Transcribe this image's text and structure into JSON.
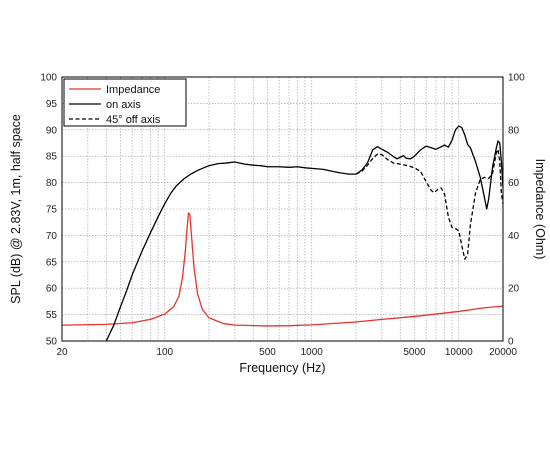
{
  "chart_data": {
    "type": "line",
    "title": "",
    "xlabel": "Frequency (Hz)",
    "ylabel_left": "SPL (dB) @ 2.83V, 1m, half space",
    "ylabel_right": "Impedance (Ohm)",
    "x_scale": "log",
    "xlim": [
      20,
      20000
    ],
    "ylim_left": [
      50,
      100
    ],
    "ylim_right": [
      0,
      100
    ],
    "grid": true,
    "legend_position": "top-left",
    "x_tick_labels": [
      {
        "value": 20,
        "label": "20"
      },
      {
        "value": 100,
        "label": "100"
      },
      {
        "value": 500,
        "label": "500"
      },
      {
        "value": 1000,
        "label": "1000"
      },
      {
        "value": 5000,
        "label": "5000"
      },
      {
        "value": 10000,
        "label": "10000"
      },
      {
        "value": 20000,
        "label": "20000"
      }
    ],
    "y_left_ticks": [
      50,
      55,
      60,
      65,
      70,
      75,
      80,
      85,
      90,
      95,
      100
    ],
    "y_right_ticks": [
      0,
      20,
      40,
      60,
      80,
      100
    ],
    "series": [
      {
        "name": "Impedance",
        "axis": "right",
        "color": "#e8322b",
        "dash": "solid",
        "points": [
          [
            20,
            6
          ],
          [
            40,
            6.3
          ],
          [
            60,
            6.9
          ],
          [
            80,
            8.2
          ],
          [
            100,
            10.2
          ],
          [
            115,
            13
          ],
          [
            125,
            17
          ],
          [
            132,
            24
          ],
          [
            138,
            34
          ],
          [
            142,
            43
          ],
          [
            145,
            48.5
          ],
          [
            148,
            48
          ],
          [
            152,
            40
          ],
          [
            158,
            28
          ],
          [
            167,
            18
          ],
          [
            180,
            12
          ],
          [
            200,
            8.8
          ],
          [
            250,
            6.6
          ],
          [
            300,
            6
          ],
          [
            500,
            5.7
          ],
          [
            700,
            5.8
          ],
          [
            1000,
            6.1
          ],
          [
            2000,
            7.2
          ],
          [
            3000,
            8.2
          ],
          [
            5000,
            9.3
          ],
          [
            7000,
            10.2
          ],
          [
            10000,
            11.2
          ],
          [
            15000,
            12.6
          ],
          [
            20000,
            13.2
          ]
        ]
      },
      {
        "name": "on axis",
        "axis": "left",
        "color": "#000000",
        "dash": "solid",
        "points": [
          [
            40,
            50
          ],
          [
            45,
            53
          ],
          [
            50,
            56.5
          ],
          [
            55,
            59.5
          ],
          [
            60,
            62.5
          ],
          [
            70,
            67
          ],
          [
            80,
            70.5
          ],
          [
            90,
            73.5
          ],
          [
            100,
            76
          ],
          [
            110,
            78
          ],
          [
            120,
            79.4
          ],
          [
            135,
            80.7
          ],
          [
            150,
            81.6
          ],
          [
            170,
            82.4
          ],
          [
            200,
            83.2
          ],
          [
            230,
            83.6
          ],
          [
            260,
            83.7
          ],
          [
            300,
            83.9
          ],
          [
            350,
            83.5
          ],
          [
            400,
            83.3
          ],
          [
            450,
            83.2
          ],
          [
            500,
            83
          ],
          [
            600,
            83
          ],
          [
            700,
            82.9
          ],
          [
            800,
            83
          ],
          [
            900,
            82.8
          ],
          [
            1000,
            82.7
          ],
          [
            1200,
            82.5
          ],
          [
            1400,
            82.1
          ],
          [
            1600,
            81.8
          ],
          [
            1800,
            81.6
          ],
          [
            2000,
            81.6
          ],
          [
            2200,
            82.4
          ],
          [
            2400,
            83.8
          ],
          [
            2600,
            86.2
          ],
          [
            2800,
            86.8
          ],
          [
            3000,
            86.3
          ],
          [
            3300,
            85.7
          ],
          [
            3600,
            84.9
          ],
          [
            3800,
            84.5
          ],
          [
            4000,
            84.8
          ],
          [
            4200,
            85.1
          ],
          [
            4400,
            84.6
          ],
          [
            4700,
            84.5
          ],
          [
            5000,
            85
          ],
          [
            5500,
            86.2
          ],
          [
            6000,
            86.9
          ],
          [
            6500,
            86.6
          ],
          [
            7000,
            86.3
          ],
          [
            7500,
            86.7
          ],
          [
            8000,
            87.1
          ],
          [
            8500,
            86.7
          ],
          [
            9000,
            88
          ],
          [
            9500,
            90
          ],
          [
            10000,
            90.7
          ],
          [
            10500,
            90.4
          ],
          [
            11000,
            89
          ],
          [
            11500,
            87.2
          ],
          [
            12000,
            86.6
          ],
          [
            13000,
            84
          ],
          [
            14000,
            81
          ],
          [
            15000,
            77
          ],
          [
            15500,
            75
          ],
          [
            16000,
            77
          ],
          [
            17000,
            83
          ],
          [
            18000,
            86.5
          ],
          [
            18500,
            87.9
          ],
          [
            19000,
            87.5
          ],
          [
            19500,
            84
          ],
          [
            20000,
            79
          ]
        ]
      },
      {
        "name": "45° off axis",
        "axis": "left",
        "color": "#000000",
        "dash": "dashed",
        "points": [
          [
            2000,
            81.6
          ],
          [
            2200,
            82.2
          ],
          [
            2400,
            83.3
          ],
          [
            2600,
            84.6
          ],
          [
            2800,
            85.4
          ],
          [
            3000,
            85.3
          ],
          [
            3300,
            84.3
          ],
          [
            3600,
            83.7
          ],
          [
            4000,
            83.5
          ],
          [
            4500,
            83.2
          ],
          [
            5000,
            82.8
          ],
          [
            5500,
            82.1
          ],
          [
            6000,
            80.2
          ],
          [
            6500,
            78.5
          ],
          [
            6800,
            78.1
          ],
          [
            7200,
            78.7
          ],
          [
            7600,
            79
          ],
          [
            8000,
            77.8
          ],
          [
            8500,
            73.5
          ],
          [
            9000,
            71.5
          ],
          [
            9500,
            71.3
          ],
          [
            10000,
            70.9
          ],
          [
            10500,
            68
          ],
          [
            11000,
            65.5
          ],
          [
            11500,
            66.5
          ],
          [
            12000,
            72
          ],
          [
            13000,
            78
          ],
          [
            14000,
            80.6
          ],
          [
            15000,
            81
          ],
          [
            16000,
            80.8
          ],
          [
            17000,
            81.8
          ],
          [
            18000,
            85.6
          ],
          [
            18500,
            86.3
          ],
          [
            19000,
            84
          ],
          [
            19500,
            78
          ],
          [
            20000,
            76
          ]
        ]
      }
    ]
  }
}
